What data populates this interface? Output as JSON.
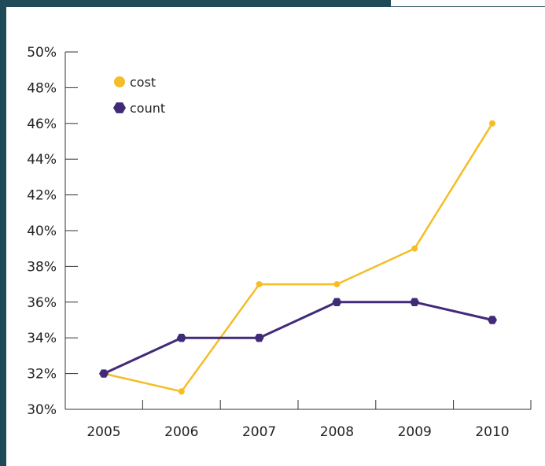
{
  "chart_data": {
    "type": "line",
    "categories": [
      "2005",
      "2006",
      "2007",
      "2008",
      "2009",
      "2010"
    ],
    "series": [
      {
        "name": "cost",
        "values": [
          32,
          31,
          37,
          37,
          39,
          46
        ],
        "color": "#f5bd26",
        "marker": "circle"
      },
      {
        "name": "count",
        "values": [
          32,
          34,
          34,
          36,
          36,
          35
        ],
        "color": "#412a78",
        "marker": "hexagon"
      }
    ],
    "y_ticks": [
      "30%",
      "32%",
      "34%",
      "36%",
      "38%",
      "40%",
      "42%",
      "44%",
      "46%",
      "48%",
      "50%"
    ],
    "ylim": [
      30,
      50
    ],
    "y_unit": "%",
    "grid": false,
    "legend_position": "top-left"
  },
  "colors": {
    "frame": "#1f4a57",
    "axis": "#333333"
  }
}
